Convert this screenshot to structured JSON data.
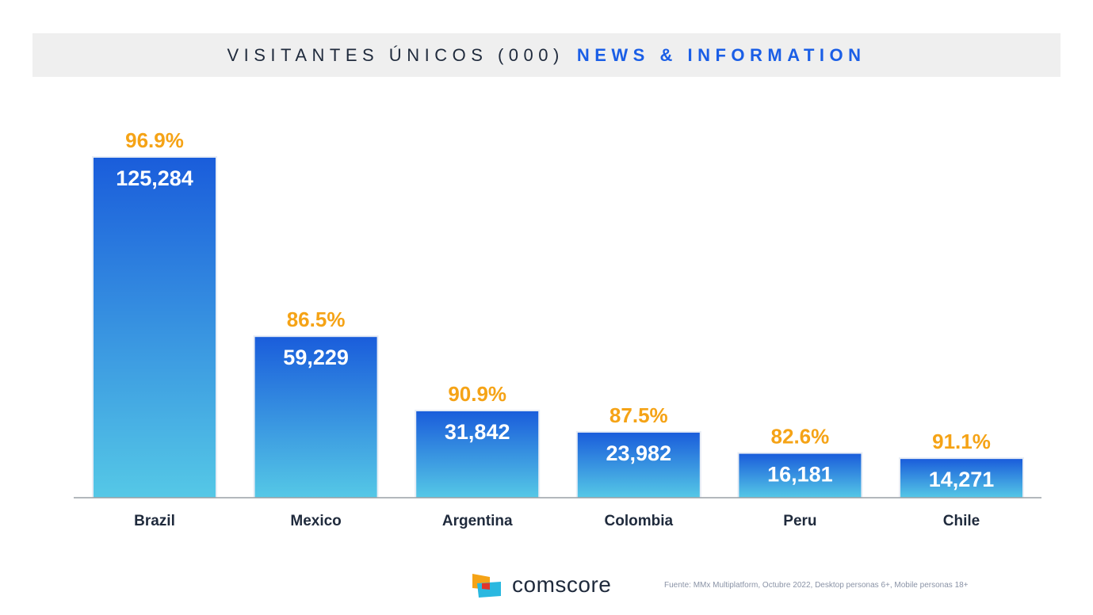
{
  "title": {
    "main": "VISITANTES ÚNICOS (000)",
    "accent": "NEWS & INFORMATION"
  },
  "colors": {
    "bar_top": "#1a5ddb",
    "bar_bottom": "#55c8e6",
    "percent_label": "#f5a316",
    "value_label": "#ffffff",
    "axis": "#9aa0a6",
    "category_label": "#1f2a3c",
    "title_accent": "#1a5ee6"
  },
  "chart_data": {
    "type": "bar",
    "categories": [
      "Brazil",
      "Mexico",
      "Argentina",
      "Colombia",
      "Peru",
      "Chile"
    ],
    "values": [
      125284,
      59229,
      31842,
      23982,
      16181,
      14271
    ],
    "value_labels": [
      "125,284",
      "59,229",
      "31,842",
      "23,982",
      "16,181",
      "14,271"
    ],
    "percent_labels": [
      "96.9%",
      "86.5%",
      "90.9%",
      "87.5%",
      "82.6%",
      "91.1%"
    ],
    "ylim": [
      0,
      135000
    ],
    "grid": false,
    "legend": "none"
  },
  "footer": {
    "brand": "comscore",
    "logo_icon": "comscore-logo-icon",
    "source": "Fuente: MMx Multiplatform, Octubre 2022, Desktop personas 6+, Mobile personas 18+"
  }
}
